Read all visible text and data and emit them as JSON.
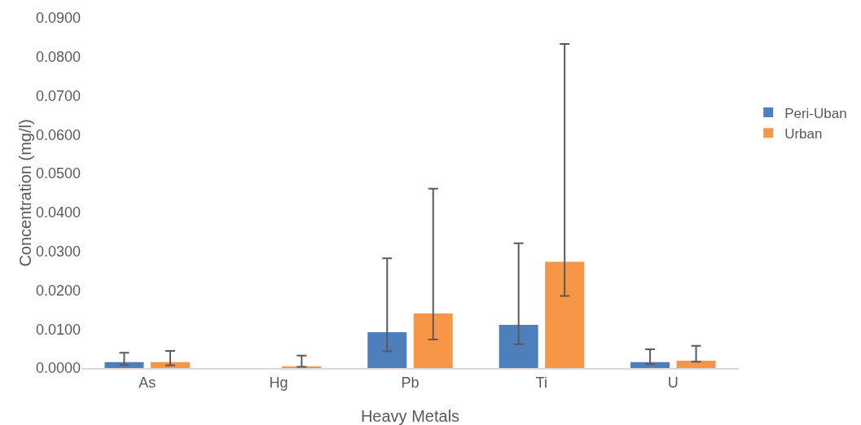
{
  "chart_data": {
    "type": "bar",
    "xlabel": "Heavy Metals",
    "ylabel": "Concentration (mg/l)",
    "categories": [
      "As",
      "Hg",
      "Pb",
      "Ti",
      "U"
    ],
    "series": [
      {
        "name": "Peri-Uban",
        "color": "#4e7fbd",
        "values": [
          0.0015,
          null,
          0.0092,
          0.0111,
          0.0015
        ],
        "errors": [
          [
            0.0008,
            0.0039
          ],
          null,
          [
            0.0043,
            0.0282
          ],
          [
            0.0061,
            0.0321
          ],
          [
            0.001,
            0.0048
          ]
        ]
      },
      {
        "name": "Urban",
        "color": "#f79646",
        "values": [
          0.0015,
          0.0003,
          0.014,
          0.0273,
          0.0019
        ],
        "errors": [
          [
            0.0007,
            0.0044
          ],
          [
            0.0003,
            0.0032
          ],
          [
            0.0073,
            0.0461
          ],
          [
            0.0185,
            0.0833
          ],
          [
            0.0016,
            0.0057
          ]
        ]
      }
    ],
    "ylim": [
      0,
      0.09
    ],
    "yticks": [
      {
        "value": 0,
        "label": "0.0000"
      },
      {
        "value": 0.01,
        "label": "0.0100"
      },
      {
        "value": 0.02,
        "label": "0.0200"
      },
      {
        "value": 0.03,
        "label": "0.0300"
      },
      {
        "value": 0.04,
        "label": "0.0400"
      },
      {
        "value": 0.05,
        "label": "0.0500"
      },
      {
        "value": 0.06,
        "label": "0.0600"
      },
      {
        "value": 0.07,
        "label": "0.0700"
      },
      {
        "value": 0.08,
        "label": "0.0800"
      },
      {
        "value": 0.09,
        "label": "0.0900"
      }
    ],
    "legend": "right"
  }
}
